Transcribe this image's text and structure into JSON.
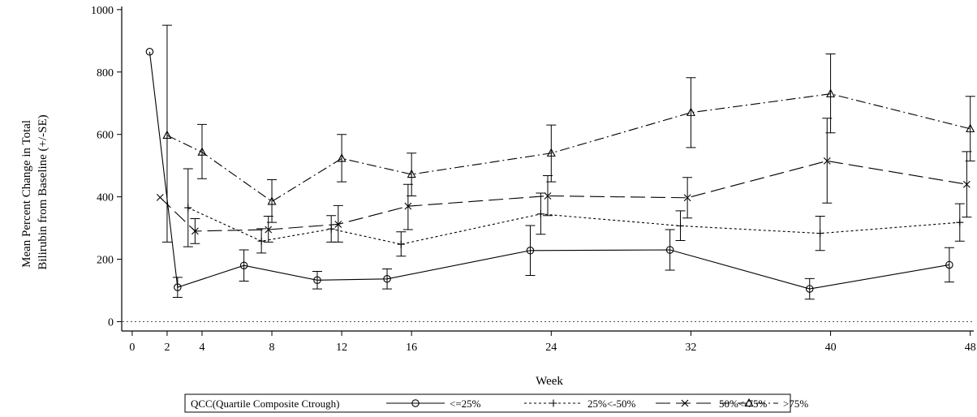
{
  "chart_data": {
    "type": "line",
    "xlabel": "Week",
    "ylabel_lines": [
      "Mean Percent Change in Total",
      "Bilirubin from Baseline (+/-SE)"
    ],
    "xlim": [
      -0.6,
      48.2
    ],
    "ylim": [
      -30,
      1010
    ],
    "x_ticks": [
      0,
      2,
      4,
      8,
      12,
      16,
      24,
      32,
      40,
      48
    ],
    "y_ticks": [
      0,
      200,
      400,
      600,
      800,
      1000
    ],
    "reference_line_y": 0,
    "legend": {
      "title": "QCC(Quartile Composite Ctrough)",
      "position": "bottom"
    },
    "series": [
      {
        "name": "<=25%",
        "marker": "circle",
        "dash": "solid",
        "points": [
          {
            "x": 1.0,
            "y": 865
          },
          {
            "x": 2.6,
            "y": 110,
            "lo": 78,
            "hi": 142
          },
          {
            "x": 6.4,
            "y": 180,
            "lo": 130,
            "hi": 230
          },
          {
            "x": 10.6,
            "y": 133,
            "lo": 105,
            "hi": 161
          },
          {
            "x": 14.6,
            "y": 137,
            "lo": 105,
            "hi": 169
          },
          {
            "x": 22.8,
            "y": 228,
            "lo": 148,
            "hi": 308
          },
          {
            "x": 30.8,
            "y": 230,
            "lo": 165,
            "hi": 295
          },
          {
            "x": 38.8,
            "y": 105,
            "lo": 72,
            "hi": 138
          },
          {
            "x": 46.8,
            "y": 182,
            "lo": 127,
            "hi": 237
          }
        ]
      },
      {
        "name": "25%<-50%",
        "marker": "plus",
        "dash": "dotted",
        "points": [
          {
            "x": 3.2,
            "y": 365,
            "lo": 240,
            "hi": 490
          },
          {
            "x": 7.4,
            "y": 258,
            "lo": 220,
            "hi": 298
          },
          {
            "x": 11.4,
            "y": 297,
            "lo": 255,
            "hi": 340
          },
          {
            "x": 15.4,
            "y": 248,
            "lo": 210,
            "hi": 288
          },
          {
            "x": 23.4,
            "y": 345,
            "lo": 280,
            "hi": 412
          },
          {
            "x": 31.4,
            "y": 307,
            "lo": 260,
            "hi": 355
          },
          {
            "x": 39.4,
            "y": 283,
            "lo": 228,
            "hi": 338
          },
          {
            "x": 47.4,
            "y": 318,
            "lo": 258,
            "hi": 378
          }
        ]
      },
      {
        "name": "50%<-75%",
        "marker": "x",
        "dash": "longdash",
        "points": [
          {
            "x": 1.6,
            "y": 398
          },
          {
            "x": 3.6,
            "y": 290,
            "lo": 250,
            "hi": 330
          },
          {
            "x": 7.8,
            "y": 295,
            "lo": 255,
            "hi": 338
          },
          {
            "x": 11.8,
            "y": 312,
            "lo": 255,
            "hi": 372
          },
          {
            "x": 15.8,
            "y": 370,
            "lo": 295,
            "hi": 440
          },
          {
            "x": 23.8,
            "y": 403,
            "lo": 340,
            "hi": 468
          },
          {
            "x": 31.8,
            "y": 397,
            "lo": 332,
            "hi": 462
          },
          {
            "x": 39.8,
            "y": 515,
            "lo": 380,
            "hi": 652
          },
          {
            "x": 47.8,
            "y": 440,
            "lo": 335,
            "hi": 545
          }
        ]
      },
      {
        "name": ">75%",
        "marker": "triangle",
        "dash": "dashdot",
        "points": [
          {
            "x": 2.0,
            "y": 597,
            "lo": 255,
            "hi": 950
          },
          {
            "x": 4.0,
            "y": 543,
            "lo": 458,
            "hi": 632
          },
          {
            "x": 8.0,
            "y": 385,
            "lo": 318,
            "hi": 455
          },
          {
            "x": 12.0,
            "y": 523,
            "lo": 448,
            "hi": 600
          },
          {
            "x": 16.0,
            "y": 472,
            "lo": 403,
            "hi": 540
          },
          {
            "x": 24.0,
            "y": 540,
            "lo": 448,
            "hi": 630
          },
          {
            "x": 32.0,
            "y": 670,
            "lo": 558,
            "hi": 782
          },
          {
            "x": 40.0,
            "y": 730,
            "lo": 605,
            "hi": 858
          },
          {
            "x": 48.0,
            "y": 618,
            "lo": 515,
            "hi": 722
          }
        ]
      }
    ]
  }
}
